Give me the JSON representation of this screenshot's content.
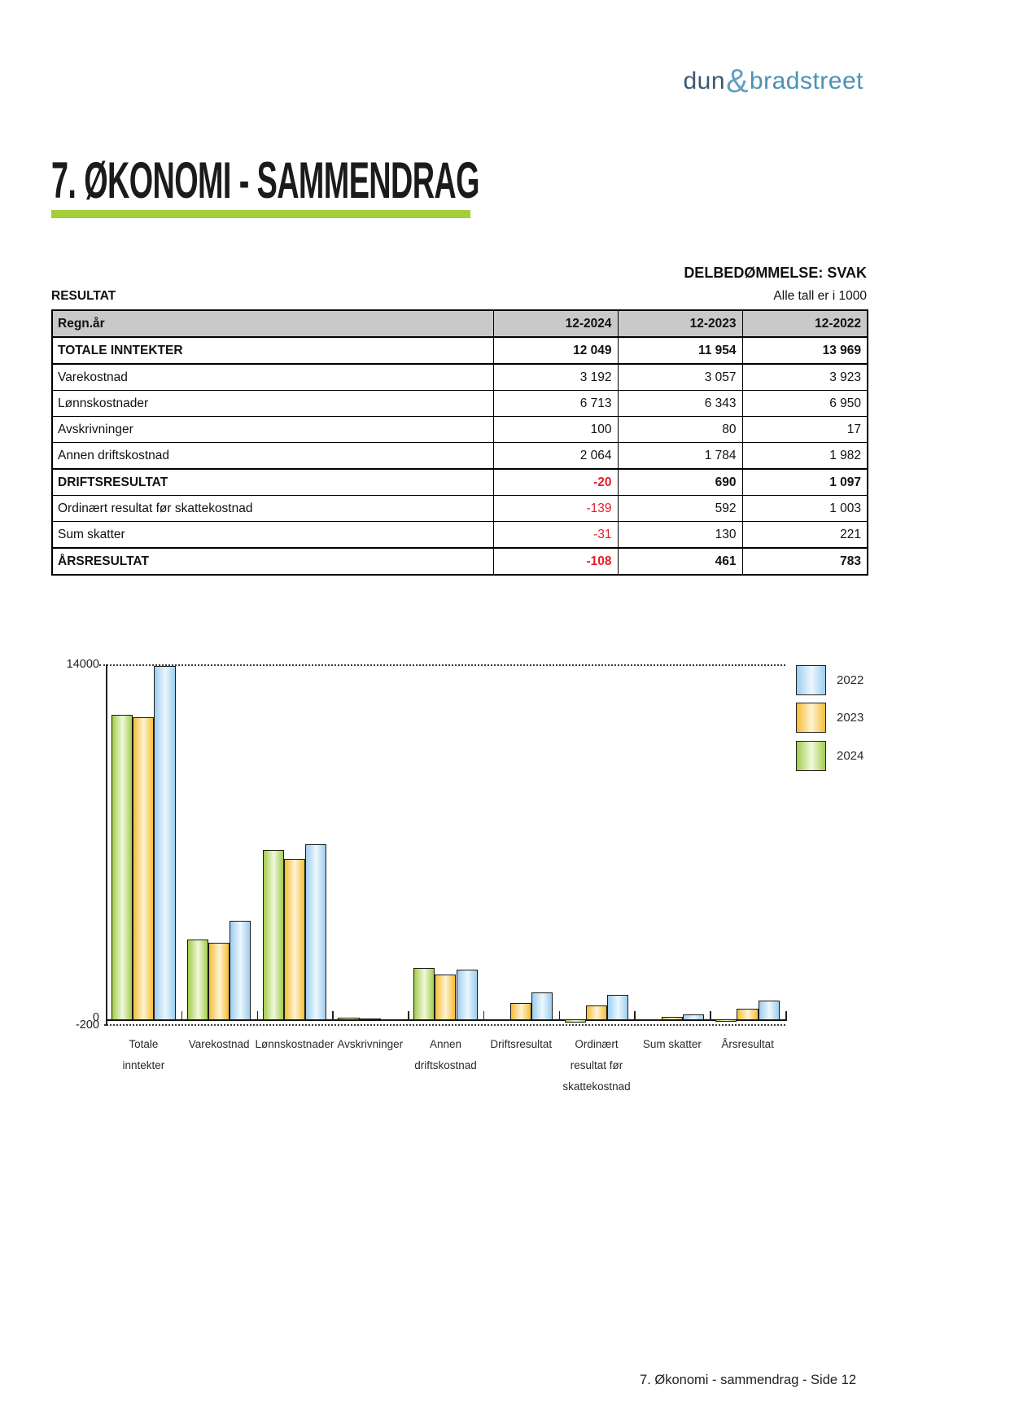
{
  "logo": {
    "dun": "dun",
    "amp": "&",
    "bradstreet": "bradstreet"
  },
  "page": {
    "title": "7. ØKONOMI - SAMMENDRAG",
    "assessment": "DELBEDØMMELSE: SVAK",
    "section_label": "RESULTAT",
    "units_note": "Alle tall er i 1000",
    "footer": "7. Økonomi - sammendrag - Side 12"
  },
  "table": {
    "header": [
      "Regn.år",
      "12-2024",
      "12-2023",
      "12-2022"
    ],
    "rows": [
      {
        "label": "TOTALE INNTEKTER",
        "values": [
          "12 049",
          "11 954",
          "13 969"
        ],
        "bold": true,
        "thick_top": true
      },
      {
        "label": "Varekostnad",
        "values": [
          "3 192",
          "3 057",
          "3 923"
        ],
        "bold": false,
        "thick_top": true
      },
      {
        "label": "Lønnskostnader",
        "values": [
          "6 713",
          "6 343",
          "6 950"
        ],
        "bold": false,
        "thick_top": false
      },
      {
        "label": "Avskrivninger",
        "values": [
          "100",
          "80",
          "17"
        ],
        "bold": false,
        "thick_top": false
      },
      {
        "label": "Annen driftskostnad",
        "values": [
          "2 064",
          "1 784",
          "1 982"
        ],
        "bold": false,
        "thick_top": false
      },
      {
        "label": "DRIFTSRESULTAT",
        "values": [
          "-20",
          "690",
          "1 097"
        ],
        "bold": true,
        "thick_top": true
      },
      {
        "label": "Ordinært resultat før skattekostnad",
        "values": [
          "-139",
          "592",
          "1 003"
        ],
        "bold": false,
        "thick_top": false
      },
      {
        "label": "Sum skatter",
        "values": [
          "-31",
          "130",
          "221"
        ],
        "bold": false,
        "thick_top": false
      },
      {
        "label": "ÅRSRESULTAT",
        "values": [
          "-108",
          "461",
          "783"
        ],
        "bold": true,
        "thick_top": true
      }
    ]
  },
  "chart_data": {
    "type": "bar",
    "categories": [
      [
        "Totale",
        "inntekter"
      ],
      [
        "Varekostnad"
      ],
      [
        "Lønnskostnader"
      ],
      [
        "Avskrivninger"
      ],
      [
        "Annen",
        "driftskostnad"
      ],
      [
        "Driftsresultat"
      ],
      [
        "Ordinært",
        "resultat før",
        "skattekostnad"
      ],
      [
        "Sum skatter"
      ],
      [
        "Årsresultat"
      ]
    ],
    "series": [
      {
        "name": "2024",
        "color_key": "green",
        "values": [
          12049,
          3192,
          6713,
          100,
          2064,
          -20,
          -139,
          -31,
          -108
        ]
      },
      {
        "name": "2023",
        "color_key": "orange",
        "values": [
          11954,
          3057,
          6343,
          80,
          1784,
          690,
          592,
          130,
          461
        ]
      },
      {
        "name": "2022",
        "color_key": "blue",
        "values": [
          13969,
          3923,
          6950,
          17,
          1982,
          1097,
          1003,
          221,
          783
        ]
      }
    ],
    "legend_order": [
      "2022",
      "2023",
      "2024"
    ],
    "legend_position": "right-top",
    "y_top_label": "14000",
    "y_zero_label": "0",
    "y_bottom_label": "-200",
    "ylim": [
      -200,
      14000
    ],
    "grid": "dotted-top-and-bottom-only"
  },
  "colors": {
    "accent_green": "#a3ce3b",
    "negative_red": "#e51d25",
    "table_header_bg": "#c9c9c9",
    "logo_dun": "#3a5872",
    "logo_amp": "#64a0c3",
    "logo_bradstreet": "#4b92b4",
    "bar_outline": "#1a1a1a",
    "bars": {
      "green": {
        "edge": "#a3cc4c",
        "mid": "#f0f8dc"
      },
      "orange": {
        "edge": "#f5bd35",
        "mid": "#fdf3d5"
      },
      "blue": {
        "edge": "#9ccdef",
        "mid": "#edf7fd"
      }
    }
  }
}
